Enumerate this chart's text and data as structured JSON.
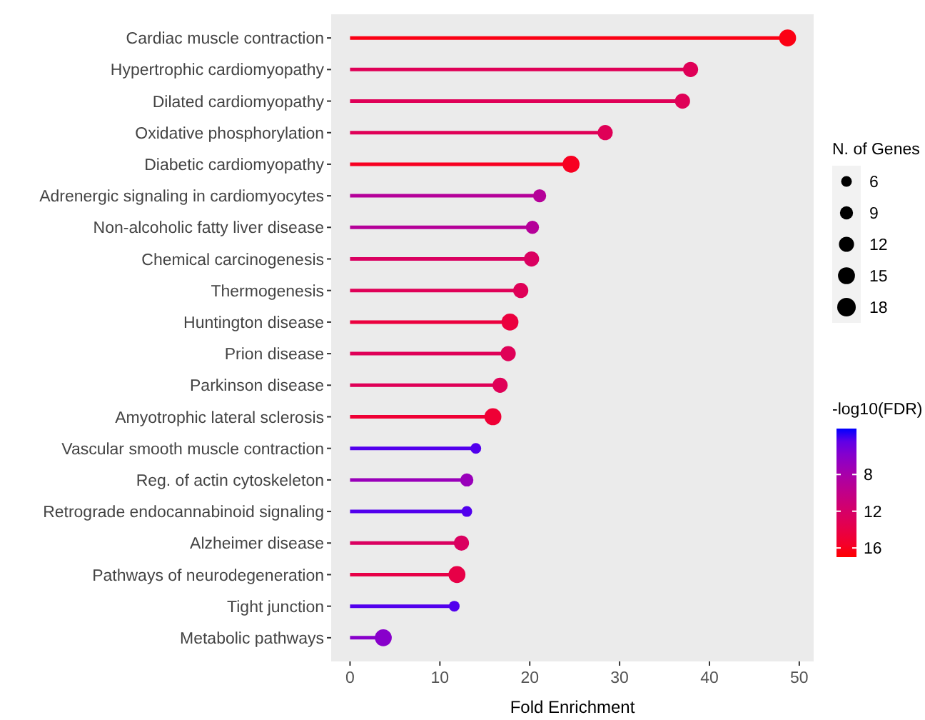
{
  "chart_data": {
    "type": "lollipop",
    "orientation": "horizontal",
    "xlabel": "Fold Enrichment",
    "categories": [
      "Cardiac muscle contraction",
      "Hypertrophic cardiomyopathy",
      "Dilated cardiomyopathy",
      "Oxidative phosphorylation",
      "Diabetic cardiomyopathy",
      "Adrenergic signaling in cardiomyocytes",
      "Non-alcoholic fatty liver disease",
      "Chemical carcinogenesis",
      "Thermogenesis",
      "Huntington disease",
      "Prion disease",
      "Parkinson disease",
      "Amyotrophic lateral sclerosis",
      "Vascular smooth muscle contraction",
      "Reg. of actin cytoskeleton",
      "Retrograde endocannabinoid signaling",
      "Alzheimer disease",
      "Pathways of neurodegeneration",
      "Tight junction",
      "Metabolic pathways"
    ],
    "values": [
      48.7,
      37.9,
      37.0,
      28.4,
      24.6,
      21.1,
      20.3,
      20.2,
      19.0,
      17.8,
      17.6,
      16.7,
      15.9,
      14.0,
      13.0,
      13.0,
      12.4,
      11.9,
      11.6,
      3.7
    ],
    "sizes": [
      15,
      12,
      12,
      12,
      15,
      9,
      9,
      12,
      12,
      15,
      12,
      12,
      15,
      6,
      9,
      6,
      12,
      15,
      6,
      15
    ],
    "size_legend": [
      6,
      9,
      12,
      15,
      18
    ],
    "legend_title": "N. of Genes",
    "cvalues": [
      16.5,
      13,
      13,
      13,
      16,
      9,
      9,
      12.5,
      13,
      14.5,
      13,
      13,
      15,
      4,
      7,
      4,
      12.5,
      14,
      4,
      6
    ],
    "clim": [
      3,
      17
    ],
    "cticks": [
      8,
      12,
      16
    ],
    "clabel": "-log10(FDR)",
    "xlim": [
      -2.1,
      51.6
    ],
    "xticks": [
      0,
      10,
      20,
      30,
      40,
      50
    ]
  }
}
